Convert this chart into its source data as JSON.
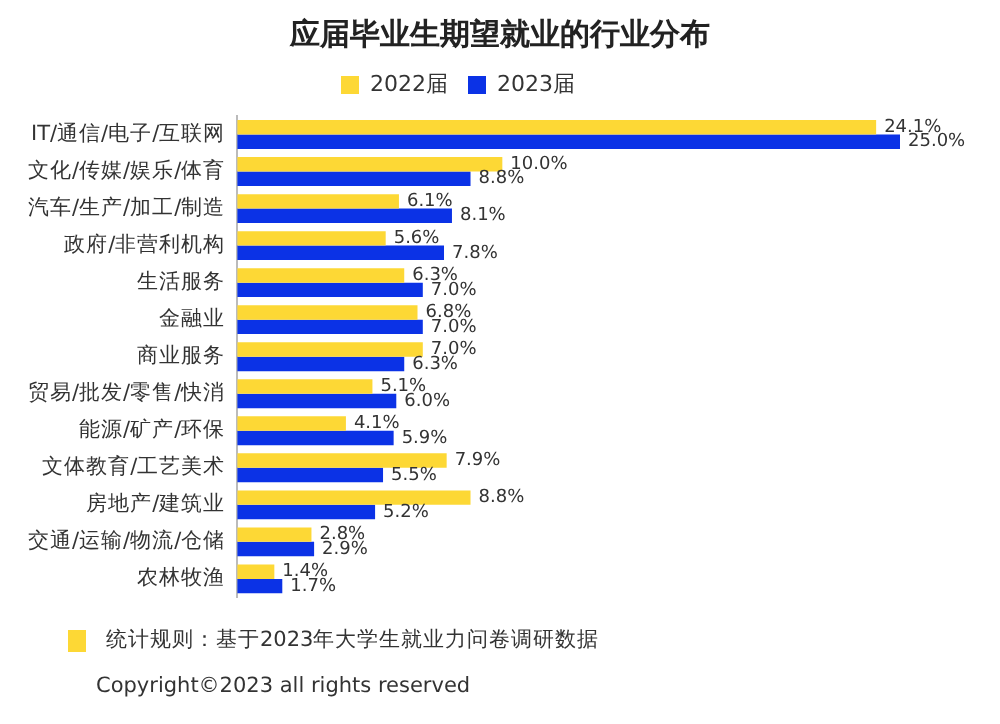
{
  "chart_data": {
    "type": "bar",
    "orientation": "horizontal",
    "title": "应届毕业生期望就业的行业分布",
    "categories": [
      "IT/通信/电子/互联网",
      "文化/传媒/娱乐/体育",
      "汽车/生产/加工/制造",
      "政府/非营利机构",
      "生活服务",
      "金融业",
      "商业服务",
      "贸易/批发/零售/快消",
      "能源/矿产/环保",
      "文体教育/工艺美术",
      "房地产/建筑业",
      "交通/运输/物流/仓储",
      "农林牧渔"
    ],
    "series": [
      {
        "name": "2022届",
        "color": "#fdd835",
        "values": [
          24.1,
          10.0,
          6.1,
          5.6,
          6.3,
          6.8,
          7.0,
          5.1,
          4.1,
          7.9,
          8.8,
          2.8,
          1.4
        ],
        "value_labels": [
          "24.1%",
          "10.0%",
          "6.1%",
          "5.6%",
          "6.3%",
          "6.8%",
          "7.0%",
          "5.1%",
          "4.1%",
          "7.9%",
          "8.8%",
          "2.8%",
          "1.4%"
        ]
      },
      {
        "name": "2023届",
        "color": "#0b32e6",
        "values": [
          25.0,
          8.8,
          8.1,
          7.8,
          7.0,
          7.0,
          6.3,
          6.0,
          5.9,
          5.5,
          5.2,
          2.9,
          1.7
        ],
        "value_labels": [
          "25.0%",
          "8.8%",
          "8.1%",
          "7.8%",
          "7.0%",
          "7.0%",
          "6.3%",
          "6.0%",
          "5.9%",
          "5.5%",
          "5.2%",
          "2.9%",
          "1.7%"
        ]
      }
    ],
    "legend": "top",
    "grid": false,
    "annotations": [
      "统计规则：基于2023年大学生就业力问卷调研数据",
      "Copyright©2023 all rights reserved"
    ]
  }
}
